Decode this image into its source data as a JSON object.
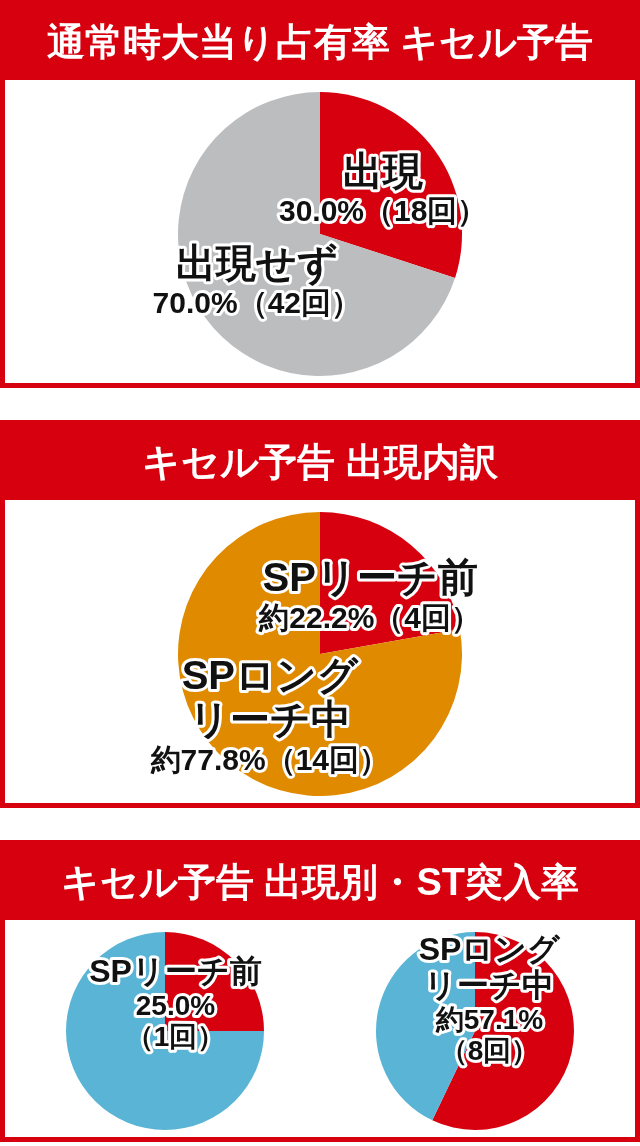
{
  "chart_data": [
    {
      "type": "pie",
      "title": "通常時大当り占有率 キセル予告",
      "categories": [
        "出現",
        "出現せず"
      ],
      "values": [
        30.0,
        70.0
      ],
      "colors": [
        "#d7000f",
        "#bcbdbf"
      ],
      "value_labels": [
        "30.0%（18回）",
        "70.0%（42回）"
      ]
    },
    {
      "type": "pie",
      "title": "キセル予告 出現内訳",
      "categories": [
        "SPリーチ前",
        "SPロングリーチ中"
      ],
      "values": [
        22.2,
        77.8
      ],
      "colors": [
        "#d7000f",
        "#e08a00"
      ],
      "value_labels": [
        "約22.2%（4回）",
        "約77.8%（14回）"
      ]
    },
    {
      "type": "pie",
      "title": "キセル予告 出現別・ST突入率",
      "subtitle": "SPリーチ前",
      "categories": [
        null,
        null
      ],
      "values": [
        25.0,
        75.0
      ],
      "colors": [
        "#d7000f",
        "#5ab4d6"
      ],
      "value_labels": [
        "25.0%（1回）",
        null
      ]
    },
    {
      "type": "pie",
      "subtitle": "SPロングリーチ中",
      "categories": [
        null,
        null
      ],
      "values": [
        57.1,
        42.9
      ],
      "colors": [
        "#d7000f",
        "#5ab4d6"
      ],
      "value_labels": [
        "約57.1%（8回）",
        null
      ]
    }
  ]
}
